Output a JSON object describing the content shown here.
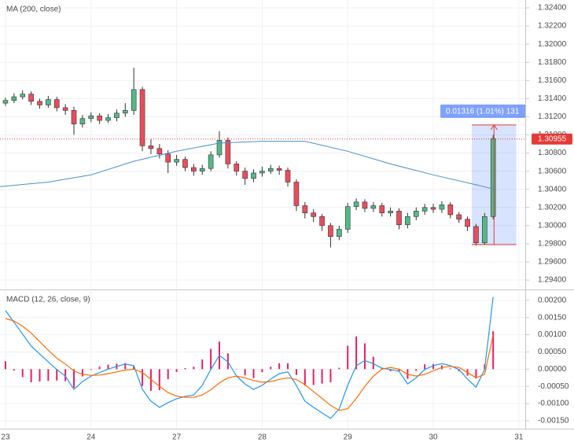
{
  "chart_data": [
    {
      "type": "candlestick",
      "xlim": [
        -0.064,
        6.075
      ],
      "ylim": [
        1.29305,
        1.32487
      ],
      "yticks": [
        {
          "value": 1.294,
          "label": "1.29400"
        },
        {
          "value": 1.296,
          "label": "1.29600"
        },
        {
          "value": 1.298,
          "label": "1.29800"
        },
        {
          "value": 1.3,
          "label": "1.30000"
        },
        {
          "value": 1.302,
          "label": "1.30200"
        },
        {
          "value": 1.304,
          "label": "1.30400"
        },
        {
          "value": 1.306,
          "label": "1.30600"
        },
        {
          "value": 1.308,
          "label": "1.30800"
        },
        {
          "value": 1.31,
          "label": "1.31000"
        },
        {
          "value": 1.312,
          "label": "1.31200"
        },
        {
          "value": 1.314,
          "label": "1.31400"
        },
        {
          "value": 1.316,
          "label": "1.31600"
        },
        {
          "value": 1.318,
          "label": "1.31800"
        },
        {
          "value": 1.32,
          "label": "1.32000"
        },
        {
          "value": 1.322,
          "label": "1.32200"
        },
        {
          "value": 1.324,
          "label": "1.32400"
        }
      ],
      "grid": true,
      "up_color": "#53b987",
      "down_color": "#eb4d5c",
      "x": [
        0,
        0.1,
        0.2,
        0.3,
        0.4,
        0.5,
        0.6,
        0.7,
        0.8,
        0.9,
        1,
        1.1,
        1.2,
        1.3,
        1.4,
        1.5,
        1.6,
        1.7,
        1.8,
        1.9,
        2,
        2.1,
        2.2,
        2.3,
        2.4,
        2.5,
        2.6,
        2.7,
        2.8,
        2.9,
        3,
        3.1,
        3.2,
        3.3,
        3.4,
        3.5,
        3.6,
        3.7,
        3.8,
        3.9,
        4,
        4.1,
        4.2,
        4.3,
        4.4,
        4.5,
        4.6,
        4.7,
        4.8,
        4.9,
        5,
        5.1,
        5.2,
        5.3,
        5.4,
        5.5,
        5.6,
        5.7
      ],
      "open": [
        1.3135,
        1.3138,
        1.3142,
        1.3145,
        1.3137,
        1.3133,
        1.3139,
        1.313,
        1.3127,
        1.3112,
        1.3118,
        1.3121,
        1.3116,
        1.3119,
        1.3124,
        1.3127,
        1.315,
        1.3088,
        1.3085,
        1.3079,
        1.307,
        1.3073,
        1.3064,
        1.306,
        1.3063,
        1.3078,
        1.3094,
        1.3068,
        1.306,
        1.3052,
        1.3058,
        1.306,
        1.3063,
        1.3061,
        1.3048,
        1.3022,
        1.3014,
        1.301,
        1.3,
        1.2988,
        1.2996,
        1.3021,
        1.3026,
        1.3019,
        1.3022,
        1.3014,
        1.3016,
        1.3001,
        1.301,
        1.3016,
        1.302,
        1.3018,
        1.3023,
        1.3012,
        1.3007,
        1.2999,
        1.2981,
        1.301
      ],
      "high": [
        1.3141,
        1.3146,
        1.3149,
        1.3148,
        1.314,
        1.3143,
        1.3142,
        1.3134,
        1.3131,
        1.3122,
        1.3125,
        1.3124,
        1.3123,
        1.3128,
        1.3135,
        1.3174,
        1.3153,
        1.3095,
        1.309,
        1.3083,
        1.3078,
        1.3076,
        1.3068,
        1.3067,
        1.3082,
        1.3104,
        1.3097,
        1.3071,
        1.3064,
        1.3062,
        1.3065,
        1.3067,
        1.3066,
        1.3064,
        1.3051,
        1.3026,
        1.3018,
        1.3013,
        1.3003,
        1.3,
        1.3025,
        1.303,
        1.3029,
        1.3026,
        1.3025,
        1.302,
        1.3019,
        1.3014,
        1.302,
        1.3024,
        1.3024,
        1.3027,
        1.3026,
        1.3015,
        1.301,
        1.3002,
        1.3014,
        1.31
      ],
      "low": [
        1.3132,
        1.3135,
        1.3139,
        1.3133,
        1.3129,
        1.313,
        1.3126,
        1.3122,
        1.31,
        1.3108,
        1.3114,
        1.3112,
        1.3113,
        1.3115,
        1.312,
        1.3122,
        1.3082,
        1.3079,
        1.3074,
        1.3058,
        1.3066,
        1.306,
        1.3055,
        1.3056,
        1.306,
        1.3075,
        1.3063,
        1.3055,
        1.3045,
        1.3048,
        1.3054,
        1.3057,
        1.3056,
        1.3043,
        1.3016,
        1.3008,
        1.3004,
        1.2994,
        1.2976,
        1.2984,
        1.2992,
        1.3017,
        1.3015,
        1.3015,
        1.301,
        1.301,
        1.2996,
        1.2997,
        1.3006,
        1.3012,
        1.3014,
        1.3014,
        1.3008,
        1.3003,
        1.2994,
        1.2978,
        1.2979,
        1.3007
      ],
      "close": [
        1.3138,
        1.3142,
        1.3145,
        1.3137,
        1.3133,
        1.3139,
        1.313,
        1.3127,
        1.3112,
        1.3118,
        1.3121,
        1.3116,
        1.3119,
        1.3124,
        1.3127,
        1.315,
        1.3088,
        1.3085,
        1.3079,
        1.307,
        1.3073,
        1.3064,
        1.306,
        1.3063,
        1.3078,
        1.3094,
        1.3068,
        1.306,
        1.3052,
        1.3058,
        1.306,
        1.3063,
        1.3061,
        1.3048,
        1.3022,
        1.3014,
        1.301,
        1.3,
        1.2988,
        1.2996,
        1.3021,
        1.3026,
        1.3019,
        1.3022,
        1.3014,
        1.3016,
        1.3001,
        1.301,
        1.3016,
        1.302,
        1.3018,
        1.3023,
        1.3012,
        1.3007,
        1.2999,
        1.2981,
        1.301,
        1.3096
      ],
      "ma": {
        "name": "MA (200, close)",
        "color": "#4a90c8",
        "x": [
          -0.064,
          0.5,
          1,
          1.5,
          2,
          2.5,
          3,
          3.5,
          4,
          4.5,
          5,
          5.5,
          5.72
        ],
        "values": [
          1.3043,
          1.3048,
          1.3056,
          1.3071,
          1.3082,
          1.3091,
          1.3093,
          1.3093,
          1.3082,
          1.3068,
          1.3056,
          1.3045,
          1.304
        ]
      },
      "current_price": {
        "value": 1.30955,
        "label": "1.30955",
        "color": "#e53935"
      },
      "measure": {
        "x_range": [
          5.45,
          5.97
        ],
        "price_range": [
          1.2979,
          1.3111
        ],
        "label": "0.01316 (1.01%) 131",
        "color": "#2962ff",
        "arrow_color": "#e53935"
      }
    },
    {
      "type": "macd",
      "title": "MACD (12, 26, close, 9)",
      "xlim": [
        -0.064,
        6.075
      ],
      "ylim": [
        -0.00173,
        0.00227
      ],
      "xticks": [
        {
          "value": 0,
          "label": "23"
        },
        {
          "value": 1,
          "label": "24"
        },
        {
          "value": 2,
          "label": "27"
        },
        {
          "value": 3,
          "label": "28"
        },
        {
          "value": 4,
          "label": "29"
        },
        {
          "value": 5,
          "label": "30"
        },
        {
          "value": 6,
          "label": "31"
        }
      ],
      "yticks": [
        {
          "value": -0.0015,
          "label": "-0.00150"
        },
        {
          "value": -0.001,
          "label": "-0.00100"
        },
        {
          "value": -0.0005,
          "label": "-0.00050"
        },
        {
          "value": 0,
          "label": "0.00000"
        },
        {
          "value": 0.0005,
          "label": "0.00050"
        },
        {
          "value": 0.001,
          "label": "0.00100"
        },
        {
          "value": 0.0015,
          "label": "0.00150"
        },
        {
          "value": 0.002,
          "label": "0.00200"
        }
      ],
      "grid": true,
      "x": [
        0,
        0.1,
        0.2,
        0.3,
        0.4,
        0.5,
        0.6,
        0.7,
        0.8,
        0.9,
        1,
        1.1,
        1.2,
        1.3,
        1.4,
        1.5,
        1.6,
        1.7,
        1.8,
        1.9,
        2,
        2.1,
        2.2,
        2.3,
        2.4,
        2.5,
        2.6,
        2.7,
        2.8,
        2.9,
        3,
        3.1,
        3.2,
        3.3,
        3.4,
        3.5,
        3.6,
        3.7,
        3.8,
        3.9,
        4,
        4.1,
        4.2,
        4.3,
        4.4,
        4.5,
        4.6,
        4.7,
        4.8,
        4.9,
        5,
        5.1,
        5.2,
        5.3,
        5.4,
        5.5,
        5.6,
        5.7
      ],
      "histogram": {
        "color": "#e91e63",
        "values": [
          0.00023,
          -4e-05,
          -0.00023,
          -0.00038,
          -0.00036,
          -0.00034,
          -0.00033,
          -0.00035,
          -0.00054,
          -0.00021,
          -2e-05,
          7e-05,
          0.00013,
          0.00016,
          0.00018,
          0.0001,
          -0.00049,
          -0.00063,
          -0.00061,
          -0.00029,
          -8e-05,
          3e-05,
          7e-05,
          0.00028,
          0.00059,
          0.0008,
          0.00046,
          0,
          -0.00018,
          -0.00026,
          -9e-05,
          7e-05,
          0.00017,
          0.00017,
          -0.00017,
          -0.00048,
          -0.00046,
          -0.00042,
          -0.00038,
          4e-05,
          0.00068,
          0.00095,
          0.00075,
          0.00036,
          3e-05,
          -6e-05,
          -6e-05,
          -0.00028,
          -5e-05,
          0.00014,
          0.00015,
          0.00011,
          2e-05,
          -6e-05,
          -0.00019,
          -0.00027,
          0.00014,
          0.0011
        ]
      },
      "series": [
        {
          "color": "#2196f3",
          "values": [
            0.0017,
            0.00136,
            0.00102,
            0.00067,
            0.00044,
            0.00021,
            -1e-05,
            -0.0002,
            -0.00059,
            -0.00036,
            -0.0002,
            -0.0001,
            0,
            8e-05,
            0.00015,
            0.0001,
            -0.00059,
            -0.00093,
            -0.00111,
            -0.00097,
            -0.00086,
            -0.00079,
            -0.00075,
            -0.00047,
            -1e-05,
            0.0004,
            0.00021,
            -0.0002,
            -0.00043,
            -0.00059,
            -0.00047,
            -0.00029,
            -0.00013,
            -8e-05,
            -0.00047,
            -0.00093,
            -0.00111,
            -0.00127,
            -0.00143,
            -0.00116,
            -0.00047,
            0.0001,
            0.00025,
            0.00016,
            3e-05,
            -1e-05,
            -6e-05,
            -0.00043,
            -0.00025,
            -1e-05,
            0.0001,
            0.00016,
            0.0001,
            -1e-05,
            -0.00029,
            -0.00052,
            -1e-05,
            0.0021
          ]
        },
        {
          "color": "#ff6d00",
          "values": [
            0.00147,
            0.0014,
            0.00125,
            0.00105,
            0.0008,
            0.00055,
            0.00032,
            0.00015,
            -5e-05,
            -0.00015,
            -0.00018,
            -0.00017,
            -0.00013,
            -8e-05,
            -3e-05,
            0,
            -0.0001,
            -0.0003,
            -0.0005,
            -0.00068,
            -0.00078,
            -0.00082,
            -0.00082,
            -0.00075,
            -0.0006,
            -0.0004,
            -0.00025,
            -0.0002,
            -0.00025,
            -0.00033,
            -0.00038,
            -0.00036,
            -0.0003,
            -0.00025,
            -0.0003,
            -0.00045,
            -0.00065,
            -0.00085,
            -0.00105,
            -0.0012,
            -0.00115,
            -0.00085,
            -0.0005,
            -0.0002,
            0,
            5e-05,
            0,
            -0.00015,
            -0.0002,
            -0.00015,
            -5e-05,
            5e-05,
            8e-05,
            5e-05,
            -0.0001,
            -0.00025,
            -0.00015,
            0.001
          ]
        }
      ]
    }
  ]
}
